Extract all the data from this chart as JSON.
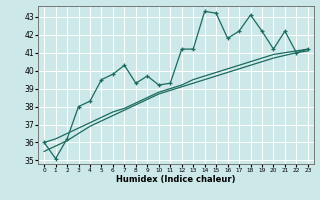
{
  "xlabel": "Humidex (Indice chaleur)",
  "bg_color": "#cce8e8",
  "grid_color": "#ffffff",
  "line_color": "#1a6b5e",
  "x_values": [
    0,
    1,
    2,
    3,
    4,
    5,
    6,
    7,
    8,
    9,
    10,
    11,
    12,
    13,
    14,
    15,
    16,
    17,
    18,
    19,
    20,
    21,
    22,
    23
  ],
  "series1": [
    36.0,
    35.1,
    36.2,
    38.0,
    38.3,
    39.5,
    39.8,
    40.3,
    39.3,
    39.7,
    39.2,
    39.3,
    41.2,
    41.2,
    43.3,
    43.2,
    41.8,
    42.2,
    43.1,
    42.2,
    41.2,
    42.2,
    41.0,
    41.2
  ],
  "trend1": [
    36.0,
    36.2,
    36.5,
    36.8,
    37.1,
    37.4,
    37.7,
    37.9,
    38.2,
    38.5,
    38.8,
    39.0,
    39.2,
    39.5,
    39.7,
    39.9,
    40.1,
    40.3,
    40.5,
    40.7,
    40.9,
    41.0,
    41.1,
    41.2
  ],
  "trend2": [
    35.5,
    35.8,
    36.1,
    36.5,
    36.9,
    37.2,
    37.5,
    37.8,
    38.1,
    38.4,
    38.7,
    38.9,
    39.1,
    39.3,
    39.5,
    39.7,
    39.9,
    40.1,
    40.3,
    40.5,
    40.7,
    40.85,
    41.0,
    41.1
  ],
  "ylim": [
    34.8,
    43.6
  ],
  "xlim": [
    -0.5,
    23.5
  ],
  "yticks": [
    35,
    36,
    37,
    38,
    39,
    40,
    41,
    42,
    43
  ],
  "xticks": [
    0,
    1,
    2,
    3,
    4,
    5,
    6,
    7,
    8,
    9,
    10,
    11,
    12,
    13,
    14,
    15,
    16,
    17,
    18,
    19,
    20,
    21,
    22,
    23
  ]
}
